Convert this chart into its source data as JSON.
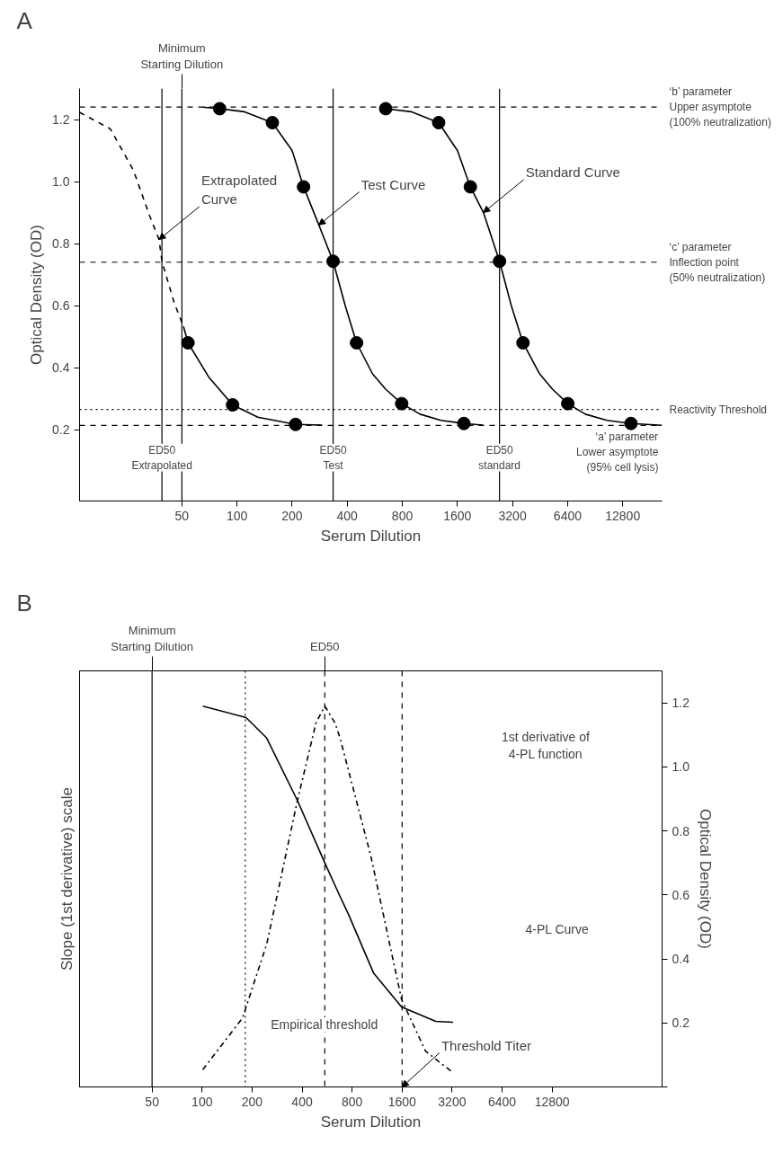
{
  "chart_data": [
    {
      "type": "line",
      "title": "A",
      "xlabel": "Serum Dilution",
      "ylabel": "Optical Density (OD)",
      "log": "x",
      "grid": false,
      "xlim": [
        13.8,
        21000
      ],
      "xticks": [
        50,
        100,
        200,
        400,
        800,
        1600,
        3200,
        6400,
        12800
      ],
      "ylim": [
        -0.03,
        1.3
      ],
      "yticks": [
        0.2,
        0.4,
        0.6,
        0.8,
        {
          "value": 1.0,
          "label": "1.0"
        },
        1.2
      ],
      "series": [
        {
          "color": "#000000",
          "line_style": "dashed",
          "x": [
            13.8,
            20.3,
            27.2,
            33.3,
            37.5,
            38.9,
            45.5,
            51
          ],
          "values": [
            1.223,
            1.17,
            1.036,
            0.89,
            0.813,
            0.743,
            0.607,
            0.533
          ]
        },
        {
          "color": "#000000",
          "line_style": "solid",
          "x": [
            51,
            54,
            70,
            94.6,
            130,
            209,
            291
          ],
          "values": [
            0.533,
            0.48,
            0.37,
            0.28,
            0.24,
            0.217,
            0.215
          ]
        },
        {
          "color": "#000000",
          "line_style": "solid",
          "x": [
            65,
            80.4,
            110,
            156,
            200,
            231,
            280,
            335,
            390,
            450,
            550,
            650,
            794,
            1000,
            1300,
            1735,
            2200
          ],
          "values": [
            1.24,
            1.235,
            1.225,
            1.19,
            1.1,
            0.983,
            0.86,
            0.743,
            0.6,
            0.48,
            0.38,
            0.33,
            0.284,
            0.25,
            0.23,
            0.22,
            0.215
          ]
        },
        {
          "color": "#000000",
          "line_style": "solid",
          "x": [
            649,
            900,
            1264,
            1600,
            1883,
            2220,
            2717,
            3150,
            3650,
            4500,
            5300,
            6413,
            8000,
            10500,
            14200,
            21000
          ],
          "values": [
            1.235,
            1.225,
            1.19,
            1.1,
            0.983,
            0.9,
            0.743,
            0.6,
            0.48,
            0.38,
            0.33,
            0.284,
            0.25,
            0.23,
            0.22,
            0.214
          ]
        },
        {
          "type": "scatter",
          "color": "#000000",
          "marker": "circle",
          "x": [
            54,
            94.6,
            209
          ],
          "values": [
            0.48,
            0.28,
            0.217
          ]
        },
        {
          "type": "scatter",
          "color": "#000000",
          "marker": "circle",
          "x": [
            80.4,
            156,
            231,
            335,
            450,
            794,
            1735
          ],
          "values": [
            1.235,
            1.19,
            0.983,
            0.743,
            0.48,
            0.284,
            0.22
          ]
        },
        {
          "type": "scatter",
          "color": "#000000",
          "marker": "circle",
          "x": [
            649,
            1264,
            1883,
            2717,
            3650,
            6413,
            14200
          ],
          "values": [
            1.235,
            1.19,
            0.983,
            0.743,
            0.48,
            0.284,
            0.22
          ]
        }
      ],
      "ref_lines": [
        {
          "axis": "y",
          "value": 1.24,
          "label": "‘b’ parameter\nUpper asymptote\n(100% neutralization)",
          "color": "#000000",
          "line_style": "dashed"
        },
        {
          "axis": "y",
          "value": 0.74,
          "label": "‘c’ parameter\nInflection point\n(50% neutralization)",
          "color": "#000000",
          "line_style": "dashed"
        },
        {
          "axis": "y",
          "value": 0.265,
          "label": "Reactivity Threshold",
          "color": "#000000",
          "line_style": "dotted"
        },
        {
          "axis": "y",
          "value": 0.214,
          "label": "‘a’ parameter\nLower asymptote\n(95% cell lysis)",
          "color": "#000000",
          "line_style": "dashed"
        },
        {
          "axis": "x",
          "value": 50,
          "label": "Minimum\nStarting Dilution",
          "color": "#000000",
          "line_style": "solid"
        },
        {
          "axis": "x",
          "value": 38.9,
          "color": "#000000",
          "line_style": "solid"
        },
        {
          "axis": "x",
          "value": 335,
          "color": "#000000",
          "line_style": "solid"
        },
        {
          "axis": "x",
          "value": 2717,
          "color": "#000000",
          "line_style": "solid"
        }
      ],
      "annotations": [
        {
          "text": "Extrapolated\nCurve",
          "x": 37.5,
          "y": 0.813
        },
        {
          "text": "Test Curve",
          "x": 280,
          "y": 0.86
        },
        {
          "text": "Standard Curve",
          "x": 2220,
          "y": 0.9
        },
        {
          "text": "ED50\nExtrapolated",
          "x": 38.9,
          "y": 0.11
        },
        {
          "text": "ED50\nTest",
          "x": 335,
          "y": 0.11
        },
        {
          "text": "ED50\nstandard",
          "x": 2717,
          "y": 0.11
        }
      ]
    },
    {
      "type": "line",
      "title": "B",
      "xlabel": "Serum Dilution",
      "ylabel": "Slope (1st derivative) scale",
      "y2label": "Optical Density (OD)",
      "log": "x",
      "grid": false,
      "xlim": [
        18.3,
        58800
      ],
      "xticks": [
        50,
        100,
        200,
        400,
        800,
        1600,
        3200,
        6400,
        12800
      ],
      "y2lim": [
        0,
        1.3
      ],
      "y2ticks": [
        {
          "value": 0,
          "label": null
        },
        0.2,
        0.4,
        0.6,
        0.8,
        {
          "value": 1.0,
          "label": "1.0"
        },
        1.2
      ],
      "series": [
        {
          "axis": "y2",
          "color": "#000000",
          "line_style": "dashdot",
          "x": [
            101,
            175,
            245,
            375,
            485,
            548,
            632,
            677,
            1037,
            1589,
            2215,
            3160
          ],
          "values": [
            0.054,
            0.215,
            0.446,
            0.895,
            1.137,
            1.19,
            1.137,
            1.09,
            0.722,
            0.273,
            0.112,
            0.049
          ]
        },
        {
          "axis": "y2",
          "color": "#000000",
          "line_style": "solid",
          "x": [
            101,
            184,
            245,
            375,
            548,
            676,
            763,
            1080,
            1589,
            2550,
            3240
          ],
          "values": [
            1.19,
            1.154,
            1.09,
            0.895,
            0.7,
            0.596,
            0.538,
            0.355,
            0.25,
            0.205,
            0.202
          ]
        }
      ],
      "ref_lines": [
        {
          "axis": "x",
          "value": 50,
          "label": "Minimum\nStarting Dilution",
          "color": "#000000",
          "line_style": "solid"
        },
        {
          "axis": "x",
          "value": 182,
          "color": "#000000",
          "line_style": "dotted"
        },
        {
          "axis": "x",
          "value": 548,
          "label": "ED50",
          "color": "#000000",
          "line_style": "dashed"
        },
        {
          "axis": "x",
          "value": 1600,
          "color": "#000000",
          "line_style": "dashed"
        }
      ],
      "annotations": [
        "1st derivative of\n4-PL function",
        "4-PL Curve",
        "Empirical threshold",
        {
          "text": "Threshold Titer",
          "x": 1600
        }
      ]
    }
  ]
}
